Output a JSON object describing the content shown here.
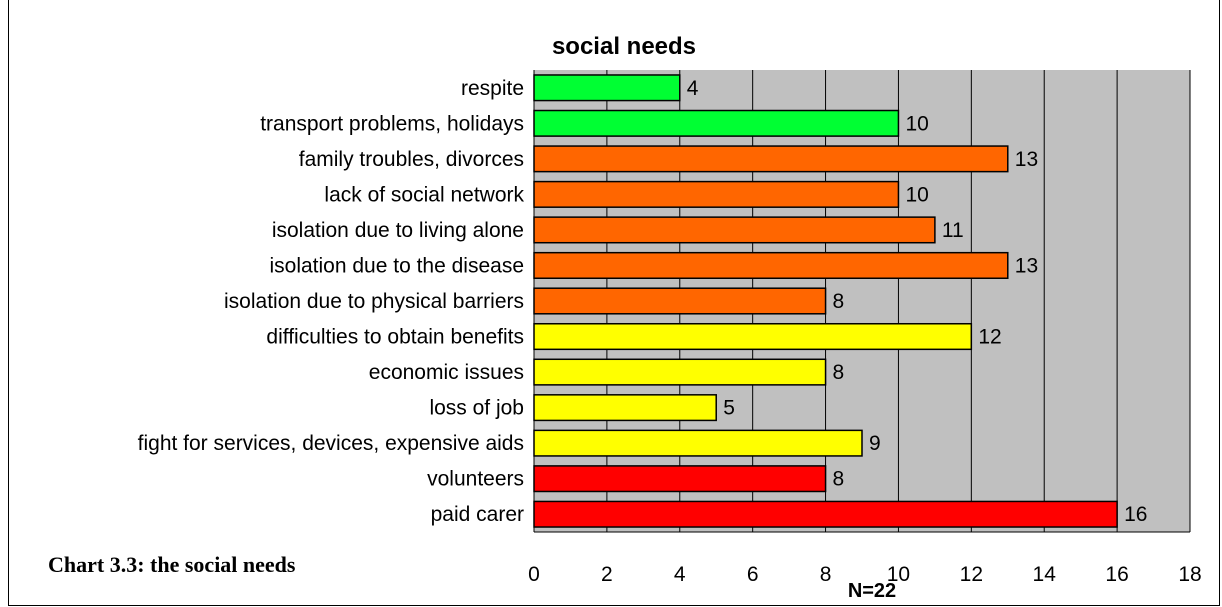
{
  "chart_data": {
    "type": "bar",
    "orientation": "horizontal",
    "title": "social needs",
    "categories": [
      "respite",
      "transport problems, holidays",
      "family troubles, divorces",
      "lack of social network",
      "isolation due to living alone",
      "isolation due to the disease",
      "isolation due to physical barriers",
      "difficulties to obtain benefits",
      "economic issues",
      "loss of job",
      "fight for services, devices, expensive aids",
      "volunteers",
      "paid carer"
    ],
    "values": [
      4,
      10,
      13,
      10,
      11,
      13,
      8,
      12,
      8,
      5,
      9,
      8,
      16
    ],
    "colors": [
      "#00ff33",
      "#00ff33",
      "#ff6600",
      "#ff6600",
      "#ff6600",
      "#ff6600",
      "#ff6600",
      "#ffff00",
      "#ffff00",
      "#ffff00",
      "#ffff00",
      "#ff0000",
      "#ff0000"
    ],
    "xlim": [
      0,
      18
    ],
    "xticks": [
      0,
      2,
      4,
      6,
      8,
      10,
      12,
      14,
      16,
      18
    ],
    "grid": true,
    "plot_background": "#c0c0c0",
    "annotation": "N=22"
  },
  "caption": "Chart 3.3: the social needs"
}
